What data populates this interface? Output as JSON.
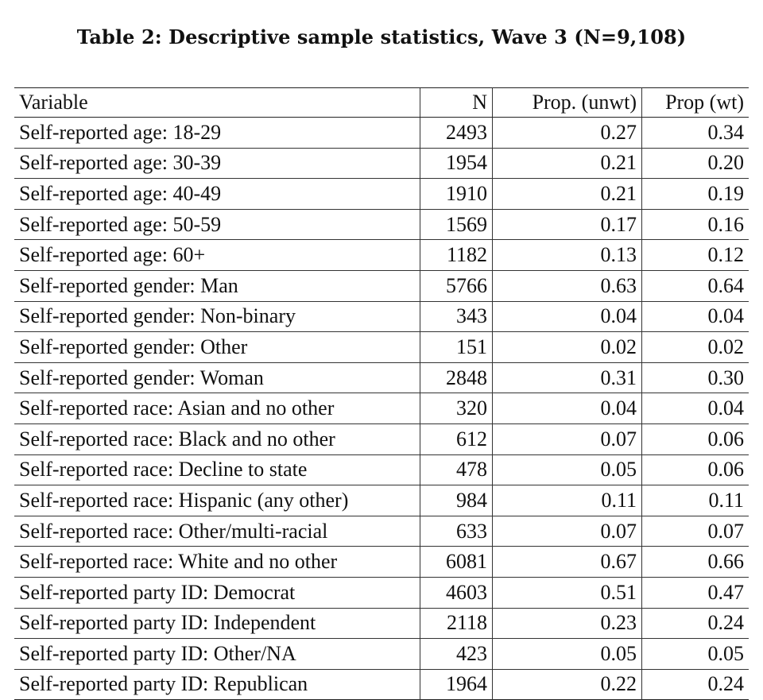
{
  "caption": "Table 2: Descriptive sample statistics, Wave 3 (N=9,108)",
  "columns": [
    "Variable",
    "N",
    "Prop. (unwt)",
    "Prop (wt)"
  ],
  "rows": [
    {
      "variable": "Self-reported age: 18-29",
      "n": "2493",
      "unwt": "0.27",
      "wt": "0.34"
    },
    {
      "variable": "Self-reported age: 30-39",
      "n": "1954",
      "unwt": "0.21",
      "wt": "0.20"
    },
    {
      "variable": "Self-reported age: 40-49",
      "n": "1910",
      "unwt": "0.21",
      "wt": "0.19"
    },
    {
      "variable": "Self-reported age: 50-59",
      "n": "1569",
      "unwt": "0.17",
      "wt": "0.16"
    },
    {
      "variable": "Self-reported age: 60+",
      "n": "1182",
      "unwt": "0.13",
      "wt": "0.12"
    },
    {
      "variable": "Self-reported gender: Man",
      "n": "5766",
      "unwt": "0.63",
      "wt": "0.64"
    },
    {
      "variable": "Self-reported gender: Non-binary",
      "n": "343",
      "unwt": "0.04",
      "wt": "0.04"
    },
    {
      "variable": "Self-reported gender: Other",
      "n": "151",
      "unwt": "0.02",
      "wt": "0.02"
    },
    {
      "variable": "Self-reported gender: Woman",
      "n": "2848",
      "unwt": "0.31",
      "wt": "0.30"
    },
    {
      "variable": "Self-reported race: Asian and no other",
      "n": "320",
      "unwt": "0.04",
      "wt": "0.04"
    },
    {
      "variable": "Self-reported race: Black and no other",
      "n": "612",
      "unwt": "0.07",
      "wt": "0.06"
    },
    {
      "variable": "Self-reported race: Decline to state",
      "n": "478",
      "unwt": "0.05",
      "wt": "0.06"
    },
    {
      "variable": "Self-reported race: Hispanic (any other)",
      "n": "984",
      "unwt": "0.11",
      "wt": "0.11"
    },
    {
      "variable": "Self-reported race: Other/multi-racial",
      "n": "633",
      "unwt": "0.07",
      "wt": "0.07"
    },
    {
      "variable": "Self-reported race: White and no other",
      "n": "6081",
      "unwt": "0.67",
      "wt": "0.66"
    },
    {
      "variable": "Self-reported party ID: Democrat",
      "n": "4603",
      "unwt": "0.51",
      "wt": "0.47"
    },
    {
      "variable": "Self-reported party ID: Independent",
      "n": "2118",
      "unwt": "0.23",
      "wt": "0.24"
    },
    {
      "variable": "Self-reported party ID: Other/NA",
      "n": "423",
      "unwt": "0.05",
      "wt": "0.05"
    },
    {
      "variable": "Self-reported party ID: Republican",
      "n": "1964",
      "unwt": "0.22",
      "wt": "0.24"
    }
  ]
}
